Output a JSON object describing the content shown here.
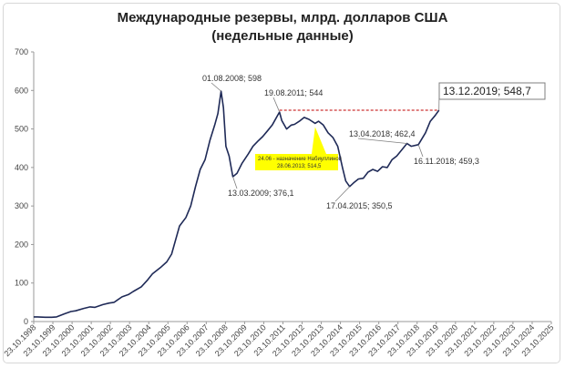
{
  "chart_data": {
    "type": "line",
    "title": "Международные резервы, млрд. долларов США",
    "subtitle": "(недельные данные)",
    "xlabel": "",
    "ylabel": "",
    "ylim": [
      0,
      700
    ],
    "yticks": [
      0,
      100,
      200,
      300,
      400,
      500,
      600,
      700
    ],
    "xlim": [
      "1998-10-23",
      "2025-10-23"
    ],
    "xticks": [
      "23.10.1998",
      "23.10.1999",
      "23.10.2000",
      "23.10.2001",
      "23.10.2002",
      "23.10.2003",
      "23.10.2004",
      "23.10.2005",
      "23.10.2006",
      "23.10.2007",
      "23.10.2008",
      "23.10.2009",
      "23.10.2010",
      "23.10.2011",
      "23.10.2012",
      "23.10.2013",
      "23.10.2014",
      "23.10.2015",
      "23.10.2016",
      "23.10.2017",
      "23.10.2018",
      "23.10.2019",
      "23.10.2020",
      "23.10.2021",
      "23.10.2022",
      "23.10.2023",
      "23.10.2024",
      "23.10.2025"
    ],
    "grid": false,
    "line_color": "#1f2a57",
    "reference_line": {
      "value": 548.7,
      "from": "2011-08-19",
      "to": "2019-12-13",
      "style": "dashed",
      "color": "#c00000"
    },
    "series": [
      {
        "x": [
          "1998-10-23",
          "1999-01-01",
          "1999-06-01",
          "1999-10-01",
          "2000-01-01",
          "2000-06-01",
          "2000-10-01",
          "2001-01-01",
          "2001-06-01",
          "2001-10-01",
          "2002-01-01",
          "2002-06-01",
          "2002-10-01",
          "2003-01-01",
          "2003-06-01",
          "2003-10-01",
          "2004-01-01",
          "2004-06-01",
          "2004-10-01",
          "2005-01-01",
          "2005-06-01",
          "2005-10-01",
          "2006-01-01",
          "2006-06-01",
          "2006-10-01",
          "2007-01-01",
          "2007-04-01",
          "2007-07-01",
          "2007-10-01",
          "2008-01-01",
          "2008-04-01",
          "2008-06-01",
          "2008-08-01",
          "2008-09-15",
          "2008-11-01",
          "2009-01-01",
          "2009-03-13",
          "2009-06-01",
          "2009-09-01",
          "2010-01-01",
          "2010-04-01",
          "2010-07-01",
          "2010-10-01",
          "2011-01-01",
          "2011-04-01",
          "2011-08-19",
          "2011-10-01",
          "2012-01-01",
          "2012-04-01",
          "2012-06-01",
          "2012-09-01",
          "2012-12-01",
          "2013-03-01",
          "2013-06-28",
          "2013-09-01",
          "2013-12-01",
          "2014-03-01",
          "2014-06-01",
          "2014-09-01",
          "2014-12-01",
          "2015-02-01",
          "2015-04-17",
          "2015-07-01",
          "2015-10-01",
          "2016-01-01",
          "2016-04-01",
          "2016-07-01",
          "2016-10-01",
          "2017-01-01",
          "2017-04-01",
          "2017-07-01",
          "2017-10-01",
          "2018-01-01",
          "2018-04-13",
          "2018-07-01",
          "2018-11-16",
          "2019-01-01",
          "2019-04-01",
          "2019-07-01",
          "2019-10-01",
          "2019-12-13"
        ],
        "values": [
          12,
          12,
          11,
          11,
          12,
          20,
          26,
          28,
          34,
          38,
          37,
          44,
          48,
          50,
          64,
          70,
          78,
          90,
          108,
          124,
          140,
          155,
          175,
          248,
          270,
          300,
          350,
          395,
          420,
          470,
          510,
          540,
          598,
          555,
          455,
          430,
          376.1,
          385,
          410,
          435,
          455,
          468,
          480,
          495,
          510,
          544,
          522,
          500,
          510,
          512,
          520,
          530,
          525,
          514.5,
          520,
          510,
          490,
          478,
          455,
          400,
          365,
          350.5,
          360,
          370,
          372,
          388,
          395,
          390,
          402,
          400,
          420,
          430,
          445,
          462.4,
          455,
          459.3,
          470,
          490,
          520,
          535,
          548.7
        ]
      }
    ],
    "annotations": [
      {
        "text": "01.08.2008; 598",
        "x": "2008-08-01",
        "y": 598
      },
      {
        "text": "19.08.2011; 544",
        "x": "2011-08-19",
        "y": 544
      },
      {
        "text": "13.12.2019; 548,7",
        "x": "2019-12-13",
        "y": 548.7
      },
      {
        "text": "13.04.2018; 462,4",
        "x": "2018-04-13",
        "y": 462.4
      },
      {
        "text": "16.11.2018; 459,3",
        "x": "2018-11-16",
        "y": 459.3
      },
      {
        "text": "13.03.2009; 376,1",
        "x": "2009-03-13",
        "y": 376.1
      },
      {
        "text": "17.04.2015; 350,5",
        "x": "2015-04-17",
        "y": 350.5
      }
    ],
    "callout": {
      "line1": "24.06 - назначение Набиуллиной",
      "line2": "28.06.2013; 514,5",
      "x": "2013-06-28",
      "y": 514.5,
      "color": "#ffff00"
    }
  }
}
